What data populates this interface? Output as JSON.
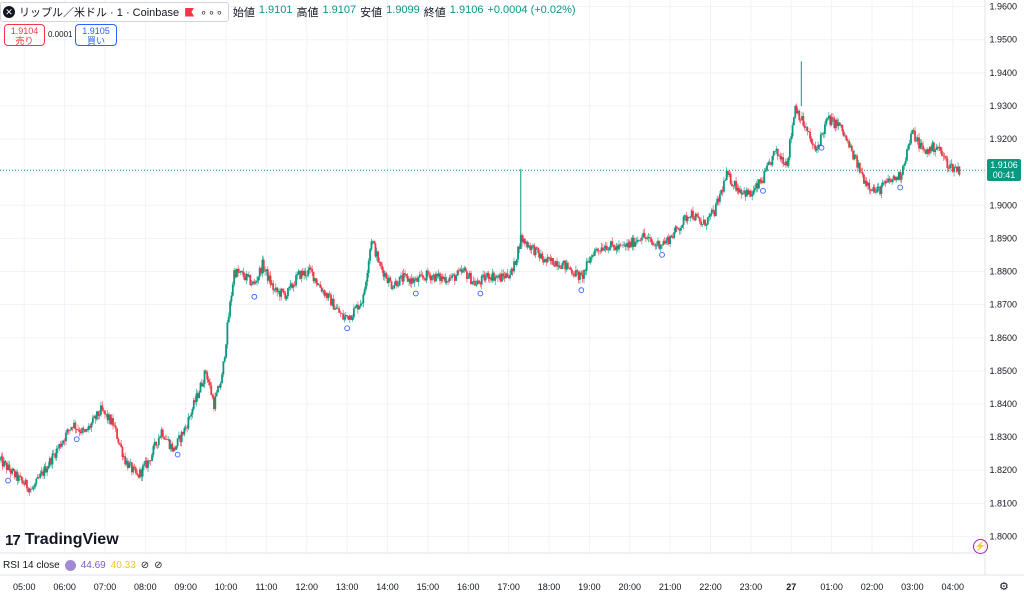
{
  "header": {
    "symbol_title": "リップル／米ドル · 1 · Coinbase",
    "more_glyph": "∘∘∘",
    "ohlc": [
      {
        "label": "始値",
        "value": "1.9101"
      },
      {
        "label": "高値",
        "value": "1.9107"
      },
      {
        "label": "安値",
        "value": "1.9099"
      },
      {
        "label": "終値",
        "value": "1.9106"
      }
    ],
    "change": "+0.0004 (+0.02%)"
  },
  "trade": {
    "sell_price": "1.9104",
    "sell_label": "売り",
    "spread": "0.0001",
    "buy_price": "1.9105",
    "buy_label": "買い"
  },
  "current": {
    "price": "1.9106",
    "countdown": "00:41"
  },
  "indicator": {
    "name": "RSI 14 close",
    "value1": "44.69",
    "value2": "40.33"
  },
  "brand": {
    "logo_mark": "17",
    "logo_text": "TradingView"
  },
  "colors": {
    "up": "#089981",
    "down": "#f23645",
    "grid": "#f0f3fa",
    "current": "#089981"
  },
  "chart_data": {
    "type": "candlestick",
    "ylim": [
      1.795,
      1.962
    ],
    "y_ticks": [
      "1.9600",
      "1.9500",
      "1.9400",
      "1.9300",
      "1.9200",
      "1.9100",
      "1.9000",
      "1.8900",
      "1.8800",
      "1.8700",
      "1.8600",
      "1.8500",
      "1.8400",
      "1.8300",
      "1.8200",
      "1.8100",
      "1.8000"
    ],
    "x_ticks": [
      "05:00",
      "06:00",
      "07:00",
      "08:00",
      "09:00",
      "10:00",
      "11:00",
      "12:00",
      "13:00",
      "14:00",
      "15:00",
      "16:00",
      "17:00",
      "18:00",
      "19:00",
      "20:00",
      "21:00",
      "22:00",
      "23:00",
      "27",
      "01:00",
      "02:00",
      "03:00",
      "04:00"
    ],
    "x_tick_hours": [
      5,
      6,
      7,
      8,
      9,
      10,
      11,
      12,
      13,
      14,
      15,
      16,
      17,
      18,
      19,
      20,
      21,
      22,
      23,
      24,
      25,
      26,
      27,
      28
    ],
    "x_range_hours": [
      4.4,
      28.8
    ],
    "close_path": [
      [
        4.4,
        1.823
      ],
      [
        4.8,
        1.818
      ],
      [
        5.2,
        1.814
      ],
      [
        5.5,
        1.82
      ],
      [
        5.9,
        1.828
      ],
      [
        6.2,
        1.834
      ],
      [
        6.5,
        1.831
      ],
      [
        6.9,
        1.838
      ],
      [
        7.2,
        1.834
      ],
      [
        7.5,
        1.823
      ],
      [
        7.8,
        1.818
      ],
      [
        8.1,
        1.823
      ],
      [
        8.4,
        1.832
      ],
      [
        8.7,
        1.826
      ],
      [
        9.0,
        1.833
      ],
      [
        9.3,
        1.843
      ],
      [
        9.5,
        1.85
      ],
      [
        9.7,
        1.84
      ],
      [
        9.9,
        1.848
      ],
      [
        10.05,
        1.865
      ],
      [
        10.2,
        1.88
      ],
      [
        10.4,
        1.879
      ],
      [
        10.7,
        1.876
      ],
      [
        10.9,
        1.882
      ],
      [
        11.2,
        1.874
      ],
      [
        11.5,
        1.873
      ],
      [
        11.8,
        1.879
      ],
      [
        12.1,
        1.88
      ],
      [
        12.3,
        1.876
      ],
      [
        12.6,
        1.871
      ],
      [
        12.9,
        1.866
      ],
      [
        13.1,
        1.867
      ],
      [
        13.4,
        1.872
      ],
      [
        13.6,
        1.89
      ],
      [
        13.8,
        1.882
      ],
      [
        14.1,
        1.876
      ],
      [
        14.4,
        1.878
      ],
      [
        14.7,
        1.877
      ],
      [
        15.0,
        1.879
      ],
      [
        15.3,
        1.878
      ],
      [
        15.6,
        1.878
      ],
      [
        15.9,
        1.88
      ],
      [
        16.2,
        1.876
      ],
      [
        16.5,
        1.879
      ],
      [
        16.8,
        1.878
      ],
      [
        17.1,
        1.88
      ],
      [
        17.3,
        1.89
      ],
      [
        17.6,
        1.887
      ],
      [
        17.9,
        1.883
      ],
      [
        18.2,
        1.883
      ],
      [
        18.5,
        1.881
      ],
      [
        18.8,
        1.878
      ],
      [
        19.1,
        1.886
      ],
      [
        19.4,
        1.888
      ],
      [
        19.7,
        1.887
      ],
      [
        20.0,
        1.888
      ],
      [
        20.3,
        1.891
      ],
      [
        20.6,
        1.888
      ],
      [
        20.9,
        1.889
      ],
      [
        21.2,
        1.893
      ],
      [
        21.5,
        1.898
      ],
      [
        21.8,
        1.894
      ],
      [
        22.1,
        1.898
      ],
      [
        22.4,
        1.909
      ],
      [
        22.7,
        1.905
      ],
      [
        23.0,
        1.903
      ],
      [
        23.3,
        1.908
      ],
      [
        23.6,
        1.916
      ],
      [
        23.9,
        1.913
      ],
      [
        24.1,
        1.93
      ],
      [
        24.4,
        1.922
      ],
      [
        24.6,
        1.916
      ],
      [
        24.9,
        1.926
      ],
      [
        25.2,
        1.924
      ],
      [
        25.5,
        1.916
      ],
      [
        25.8,
        1.908
      ],
      [
        26.1,
        1.904
      ],
      [
        26.4,
        1.907
      ],
      [
        26.7,
        1.909
      ],
      [
        27.0,
        1.922
      ],
      [
        27.3,
        1.916
      ],
      [
        27.6,
        1.918
      ],
      [
        27.9,
        1.912
      ],
      [
        28.2,
        1.9106
      ]
    ],
    "spikes": [
      {
        "hour": 17.3,
        "low": 1.887,
        "high": 1.911
      },
      {
        "hour": 24.25,
        "low": 1.93,
        "high": 1.9435
      }
    ],
    "current_price": 1.9106,
    "markers_hours": [
      4.6,
      6.3,
      8.8,
      10.7,
      13.0,
      14.7,
      16.3,
      18.8,
      20.8,
      23.3,
      24.75,
      26.7
    ]
  }
}
